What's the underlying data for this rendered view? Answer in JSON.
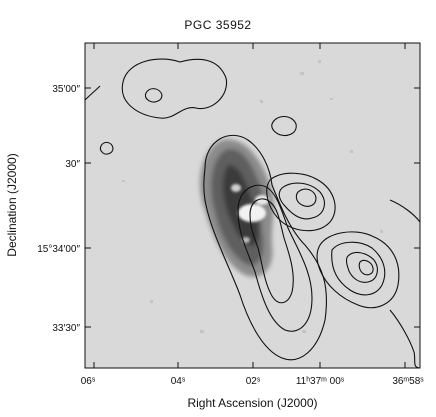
{
  "chart_data": {
    "type": "image",
    "title": "PGC 35952",
    "xlabel": "Right Ascension (J2000)",
    "ylabel": "Declination (J2000)",
    "x_ticks": [
      "06ˢ",
      "04ˢ",
      "02ˢ",
      "11ʰ37ᵐ 00ˢ",
      "36ᵐ58ˢ"
    ],
    "y_ticks": [
      "35′00″",
      "30″",
      "15°34′00″",
      "33′30″"
    ],
    "grayscale_image": "optical galaxy image (dark = bright emission)",
    "overlay": "radio continuum contours",
    "colors": {
      "background_field": "#d8d8d8",
      "galaxy_dark": "#3a3a3a",
      "contours": "#111111"
    }
  }
}
